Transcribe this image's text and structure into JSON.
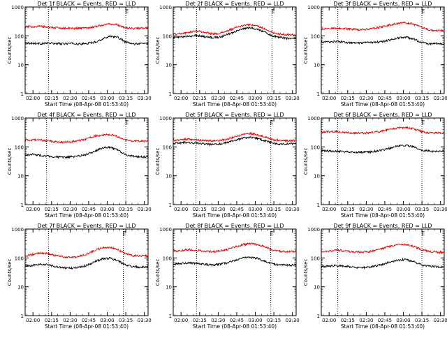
{
  "colors": {
    "events": "#000000",
    "lld": "#dd0000",
    "axes": "#000000",
    "background": "#ffffff"
  },
  "chart_data": [
    {
      "type": "line",
      "title": "Det 1f BLACK = Events, RED = LLD",
      "xlabel": "Start Time (08-Apr-08 01:53:40)",
      "ylabel": "Counts/sec",
      "xlim": [
        "01:53:40",
        "03:33:00"
      ],
      "ylim": [
        1,
        1000
      ],
      "yscale": "log",
      "xticks": [
        "02:00",
        "02:15",
        "02:30",
        "02:45",
        "03:00",
        "03:15",
        "03:30"
      ],
      "yticks": [
        "1",
        "10",
        "100",
        "1000"
      ],
      "markers": [
        {
          "time": "02:12:30",
          "label": ""
        },
        {
          "time": "03:15:00",
          "label": "E"
        }
      ],
      "series": [
        {
          "key": "events",
          "peak_time": "02:55:00",
          "values": [
            58,
            55,
            54,
            56,
            54,
            53,
            55,
            52,
            54,
            60,
            75,
            98,
            90,
            62,
            52,
            54,
            55
          ]
        },
        {
          "key": "lld",
          "peak_time": "02:55:00",
          "values": [
            205,
            210,
            215,
            200,
            190,
            185,
            182,
            185,
            190,
            205,
            235,
            262,
            240,
            190,
            180,
            185,
            188
          ]
        }
      ]
    },
    {
      "type": "line",
      "title": "Det 2f BLACK = Events, RED = LLD",
      "xlabel": "Start Time (08-Apr-08 01:53:40)",
      "ylabel": "Counts/sec",
      "xlim": [
        "01:53:40",
        "03:33:00"
      ],
      "ylim": [
        1,
        1000
      ],
      "yscale": "log",
      "xticks": [
        "02:00",
        "02:15",
        "02:30",
        "02:45",
        "03:00",
        "03:15",
        "03:30"
      ],
      "yticks": [
        "1",
        "10",
        "100",
        "1000"
      ],
      "markers": [
        {
          "time": "02:12:30",
          "label": ""
        },
        {
          "time": "03:13:30",
          "label": "E"
        }
      ],
      "series": [
        {
          "key": "events",
          "peak_time": "02:52:00",
          "values": [
            88,
            90,
            95,
            105,
            95,
            88,
            90,
            110,
            140,
            175,
            190,
            170,
            130,
            98,
            88,
            82,
            85
          ]
        },
        {
          "key": "lld",
          "peak_time": "02:52:00",
          "values": [
            115,
            120,
            130,
            150,
            135,
            118,
            120,
            145,
            185,
            225,
            245,
            220,
            170,
            125,
            115,
            110,
            112
          ]
        }
      ]
    },
    {
      "type": "line",
      "title": "Det 3f BLACK = Events, RED = LLD",
      "xlabel": "Start Time (08-Apr-08 01:53:40)",
      "ylabel": "Counts/sec",
      "xlim": [
        "01:53:40",
        "03:33:00"
      ],
      "ylim": [
        1,
        1000
      ],
      "yscale": "log",
      "xticks": [
        "02:00",
        "02:15",
        "02:30",
        "02:45",
        "03:00",
        "03:15",
        "03:30"
      ],
      "yticks": [
        "1",
        "10",
        "100",
        "1000"
      ],
      "markers": [
        {
          "time": "02:07:00",
          "label": ""
        },
        {
          "time": "03:15:00",
          "label": "E"
        }
      ],
      "series": [
        {
          "key": "events",
          "peak_time": "02:57:00",
          "values": [
            60,
            62,
            65,
            60,
            57,
            56,
            58,
            60,
            64,
            72,
            85,
            90,
            78,
            60,
            52,
            55,
            50
          ]
        },
        {
          "key": "lld",
          "peak_time": "02:57:00",
          "values": [
            170,
            180,
            185,
            178,
            170,
            165,
            170,
            185,
            210,
            240,
            270,
            285,
            255,
            200,
            160,
            155,
            150
          ]
        }
      ]
    },
    {
      "type": "line",
      "title": "Det 4f BLACK = Events, RED = LLD",
      "xlabel": "Start Time (08-Apr-08 01:53:40)",
      "ylabel": "Counts/sec",
      "xlim": [
        "01:53:40",
        "03:33:00"
      ],
      "ylim": [
        1,
        1000
      ],
      "yscale": "log",
      "xticks": [
        "02:00",
        "02:15",
        "02:30",
        "02:45",
        "03:00",
        "03:15",
        "03:30"
      ],
      "yticks": [
        "1",
        "10",
        "100",
        "1000"
      ],
      "markers": [
        {
          "time": "02:11:00",
          "label": ""
        },
        {
          "time": "03:15:00",
          "label": "E"
        }
      ],
      "series": [
        {
          "key": "events",
          "peak_time": "02:57:00",
          "values": [
            52,
            55,
            50,
            48,
            45,
            43,
            45,
            48,
            55,
            70,
            90,
            98,
            78,
            55,
            48,
            45,
            45
          ]
        },
        {
          "key": "lld",
          "peak_time": "02:57:00",
          "values": [
            170,
            175,
            172,
            160,
            150,
            145,
            150,
            165,
            190,
            230,
            265,
            270,
            230,
            175,
            160,
            158,
            160
          ]
        }
      ]
    },
    {
      "type": "line",
      "title": "Det 5f BLACK = Events, RED = LLD",
      "xlabel": "Start Time (08-Apr-08 01:53:40)",
      "ylabel": "Counts/sec",
      "xlim": [
        "01:53:40",
        "03:33:00"
      ],
      "ylim": [
        1,
        1000
      ],
      "yscale": "log",
      "xticks": [
        "02:00",
        "02:15",
        "02:30",
        "02:45",
        "03:00",
        "03:15",
        "03:30"
      ],
      "yticks": [
        "1",
        "10",
        "100",
        "1000"
      ],
      "markers": [
        {
          "time": "02:12:00",
          "label": ""
        },
        {
          "time": "03:12:30",
          "label": "E"
        }
      ],
      "series": [
        {
          "key": "events",
          "peak_time": "02:55:00",
          "values": [
            135,
            138,
            145,
            135,
            125,
            120,
            125,
            140,
            165,
            200,
            215,
            195,
            160,
            135,
            125,
            128,
            130
          ]
        },
        {
          "key": "lld",
          "peak_time": "02:55:00",
          "values": [
            170,
            175,
            185,
            175,
            165,
            160,
            165,
            185,
            220,
            265,
            290,
            265,
            215,
            175,
            165,
            165,
            168
          ]
        }
      ]
    },
    {
      "type": "line",
      "title": "Det 6f BLACK = Events, RED = LLD",
      "xlabel": "Start Time (08-Apr-08 01:53:40)",
      "ylabel": "Counts/sec",
      "xlim": [
        "01:53:40",
        "03:33:00"
      ],
      "ylim": [
        1,
        1000
      ],
      "yscale": "log",
      "xticks": [
        "02:00",
        "02:15",
        "02:30",
        "02:45",
        "03:00",
        "03:15",
        "03:30"
      ],
      "yticks": [
        "1",
        "10",
        "100",
        "1000"
      ],
      "markers": [
        {
          "time": "02:07:00",
          "label": ""
        },
        {
          "time": "03:15:00",
          "label": "E"
        }
      ],
      "series": [
        {
          "key": "events",
          "peak_time": "02:57:00",
          "values": [
            75,
            72,
            70,
            68,
            66,
            65,
            66,
            70,
            78,
            92,
            108,
            115,
            100,
            78,
            72,
            70,
            70
          ]
        },
        {
          "key": "lld",
          "peak_time": "02:57:00",
          "values": [
            330,
            335,
            338,
            320,
            305,
            298,
            300,
            320,
            360,
            410,
            450,
            470,
            430,
            345,
            310,
            305,
            300
          ]
        }
      ]
    },
    {
      "type": "line",
      "title": "Det 7f BLACK = Events, RED = LLD",
      "xlabel": "Start Time (08-Apr-08 01:53:40)",
      "ylabel": "Counts/sec",
      "xlim": [
        "01:53:40",
        "03:33:00"
      ],
      "ylim": [
        1,
        1000
      ],
      "yscale": "log",
      "xticks": [
        "02:00",
        "02:15",
        "02:30",
        "02:45",
        "03:00",
        "03:15",
        "03:30"
      ],
      "yticks": [
        "1",
        "10",
        "100",
        "1000"
      ],
      "markers": [
        {
          "time": "02:12:30",
          "label": ""
        },
        {
          "time": "03:13:00",
          "label": "E"
        }
      ],
      "series": [
        {
          "key": "events",
          "peak_time": "02:57:00",
          "values": [
            52,
            55,
            60,
            58,
            50,
            45,
            44,
            47,
            55,
            72,
            92,
            98,
            80,
            58,
            50,
            48,
            48
          ]
        },
        {
          "key": "lld",
          "peak_time": "02:57:00",
          "values": [
            120,
            130,
            150,
            140,
            120,
            108,
            105,
            112,
            135,
            180,
            220,
            235,
            195,
            140,
            120,
            118,
            118
          ]
        }
      ]
    },
    {
      "type": "line",
      "title": "Det 8f BLACK = Events, RED = LLD",
      "xlabel": "Start Time (08-Apr-08 01:53:40)",
      "ylabel": "Counts/sec",
      "xlim": [
        "01:53:40",
        "03:33:00"
      ],
      "ylim": [
        1,
        1000
      ],
      "yscale": "log",
      "xticks": [
        "02:00",
        "02:15",
        "02:30",
        "02:45",
        "03:00",
        "03:15",
        "03:30"
      ],
      "yticks": [
        "1",
        "10",
        "100",
        "1000"
      ],
      "markers": [
        {
          "time": "02:12:30",
          "label": ""
        },
        {
          "time": "03:12:30",
          "label": "E"
        }
      ],
      "series": [
        {
          "key": "events",
          "peak_time": "02:55:00",
          "values": [
            62,
            64,
            68,
            65,
            60,
            57,
            60,
            68,
            82,
            98,
            105,
            95,
            75,
            62,
            57,
            56,
            57
          ]
        },
        {
          "key": "lld",
          "peak_time": "02:55:00",
          "values": [
            175,
            180,
            195,
            185,
            170,
            165,
            172,
            195,
            235,
            285,
            315,
            290,
            235,
            185,
            170,
            165,
            170
          ]
        }
      ]
    },
    {
      "type": "line",
      "title": "Det 9f BLACK = Events, RED = LLD",
      "xlabel": "Start Time (08-Apr-08 01:53:40)",
      "ylabel": "Counts/sec",
      "xlim": [
        "01:53:40",
        "03:33:00"
      ],
      "ylim": [
        1,
        1000
      ],
      "yscale": "log",
      "xticks": [
        "02:00",
        "02:15",
        "02:30",
        "02:45",
        "03:00",
        "03:15",
        "03:30"
      ],
      "yticks": [
        "1",
        "10",
        "100",
        "1000"
      ],
      "markers": [
        {
          "time": "02:07:00",
          "label": ""
        },
        {
          "time": "03:15:00",
          "label": "E"
        }
      ],
      "series": [
        {
          "key": "events",
          "peak_time": "02:57:00",
          "values": [
            50,
            52,
            55,
            52,
            48,
            46,
            47,
            52,
            60,
            72,
            85,
            88,
            75,
            58,
            52,
            50,
            48
          ]
        },
        {
          "key": "lld",
          "peak_time": "02:57:00",
          "values": [
            165,
            172,
            185,
            175,
            162,
            158,
            162,
            180,
            215,
            255,
            285,
            290,
            255,
            195,
            170,
            160,
            155
          ]
        }
      ]
    }
  ]
}
